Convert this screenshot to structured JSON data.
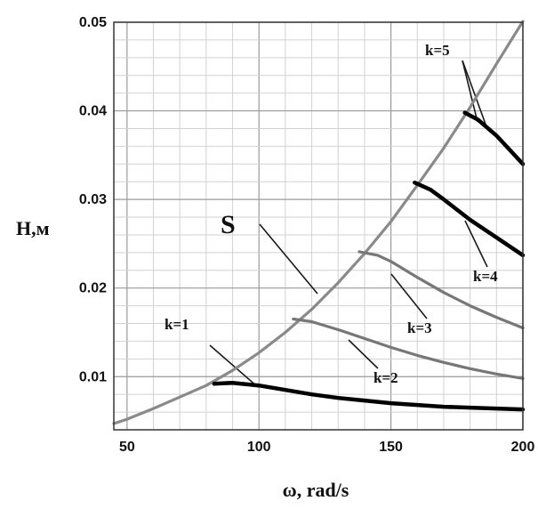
{
  "chart_data": {
    "type": "line",
    "xlabel": "ω, rad/s",
    "ylabel": "H,м",
    "xlim": [
      45,
      200
    ],
    "ylim": [
      0.004,
      0.05
    ],
    "xticks": [
      "50",
      "100",
      "150",
      "200"
    ],
    "xtick_values": [
      50,
      100,
      150,
      200
    ],
    "yticks": [
      "0.01",
      "0.02",
      "0.03",
      "0.04",
      "0.05"
    ],
    "ytick_values": [
      0.01,
      0.02,
      0.03,
      0.04,
      0.05
    ],
    "grid": true,
    "series": [
      {
        "name": "S",
        "color": "#8a8a8a",
        "x": [
          45,
          50,
          60,
          70,
          80,
          90,
          100,
          110,
          120,
          130,
          140,
          150,
          160,
          170,
          180,
          190,
          200
        ],
        "y": [
          0.0047,
          0.0052,
          0.0064,
          0.0077,
          0.009,
          0.0107,
          0.0127,
          0.015,
          0.0176,
          0.0206,
          0.0239,
          0.0275,
          0.0316,
          0.0358,
          0.0404,
          0.0453,
          0.0501
        ]
      },
      {
        "name": "k=1",
        "color": "#000000",
        "x": [
          83,
          90,
          100,
          110,
          120,
          130,
          140,
          150,
          160,
          170,
          180,
          190,
          200
        ],
        "y": [
          0.0092,
          0.0093,
          0.009,
          0.0085,
          0.008,
          0.0076,
          0.0073,
          0.007,
          0.0068,
          0.0066,
          0.0065,
          0.0064,
          0.0063
        ]
      },
      {
        "name": "k=2",
        "color": "#777777",
        "x": [
          113,
          120,
          130,
          140,
          150,
          160,
          170,
          180,
          190,
          200
        ],
        "y": [
          0.0165,
          0.0162,
          0.0153,
          0.0143,
          0.0133,
          0.0124,
          0.0116,
          0.0109,
          0.0103,
          0.0098
        ]
      },
      {
        "name": "k=3",
        "color": "#777777",
        "x": [
          138,
          145,
          150,
          160,
          170,
          180,
          190,
          200
        ],
        "y": [
          0.0241,
          0.0237,
          0.023,
          0.0212,
          0.0195,
          0.018,
          0.0167,
          0.0155
        ]
      },
      {
        "name": "k=4",
        "color": "#000000",
        "x": [
          159,
          165,
          170,
          180,
          190,
          200
        ],
        "y": [
          0.0319,
          0.0311,
          0.03,
          0.0277,
          0.0257,
          0.0237
        ]
      },
      {
        "name": "k=5",
        "color": "#000000",
        "x": [
          178,
          183,
          190,
          200
        ],
        "y": [
          0.0398,
          0.039,
          0.0372,
          0.034
        ]
      }
    ],
    "labels": {
      "S": "S",
      "k1": "k=1",
      "k2": "k=2",
      "k3": "k=3",
      "k4": "k=4",
      "k5": "k=5"
    }
  }
}
